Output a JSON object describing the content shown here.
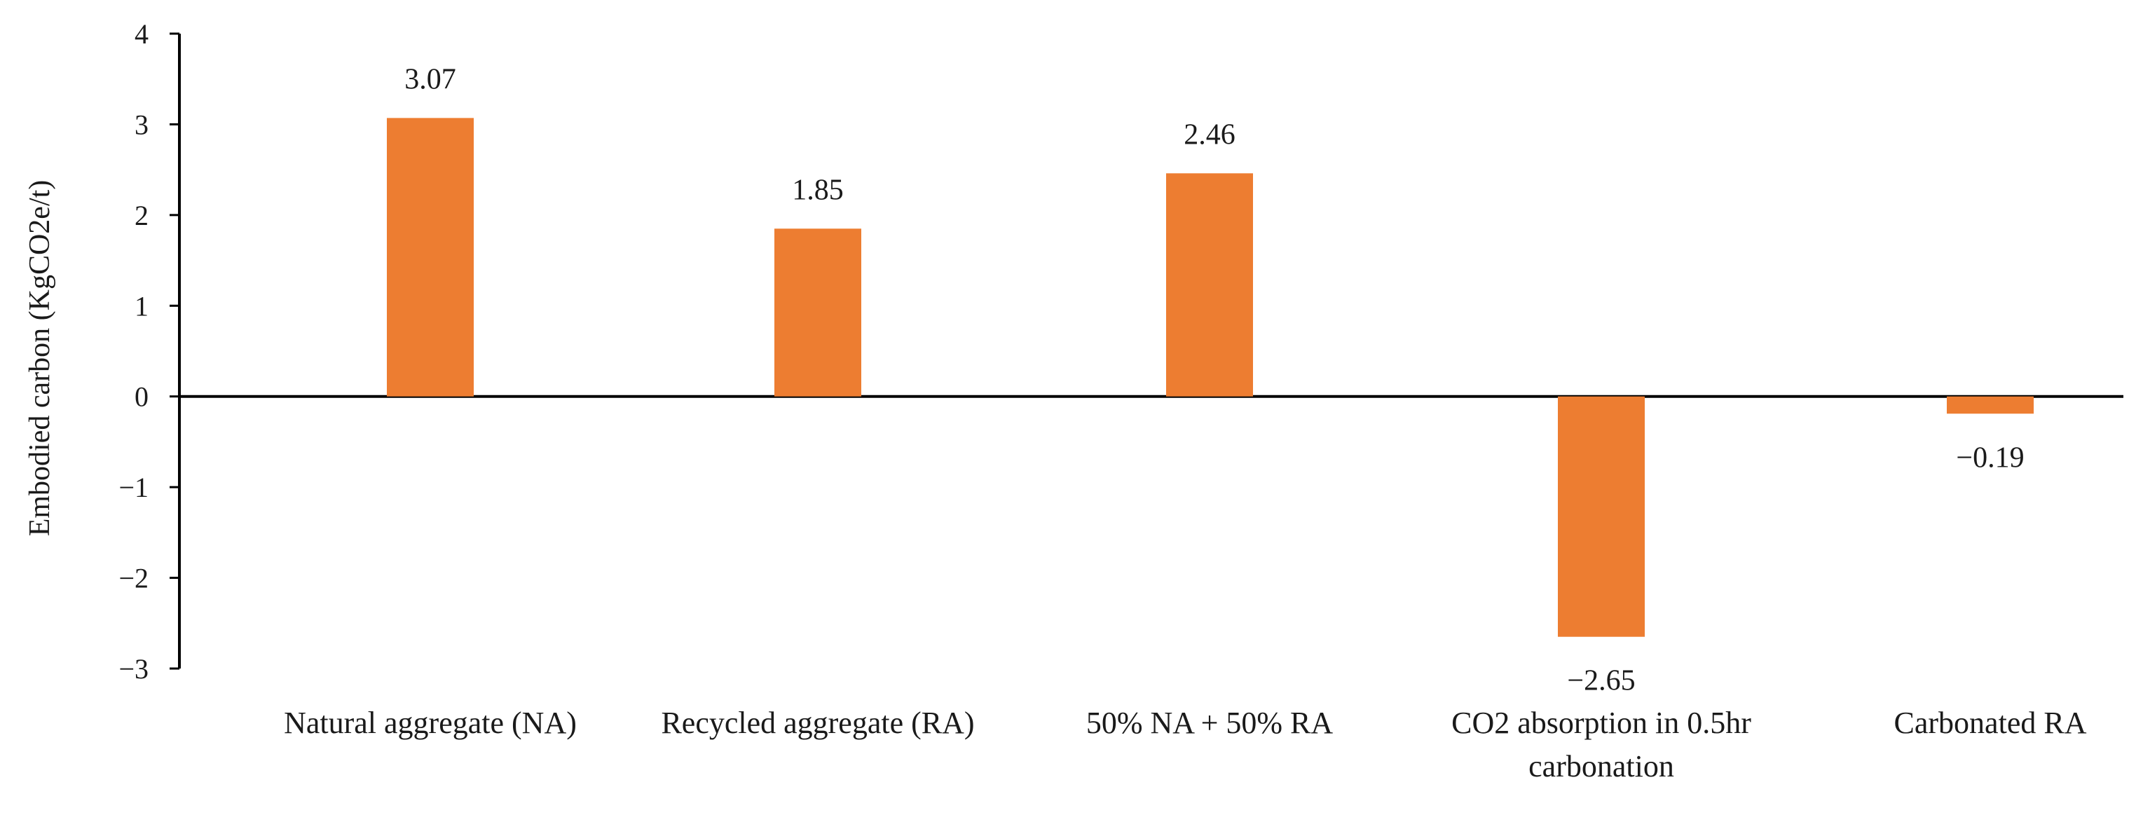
{
  "chart_data": {
    "type": "bar",
    "title": "",
    "xlabel": "",
    "ylabel": "Embodied carbon (KgCO2e/t)",
    "ylim": [
      -3,
      4
    ],
    "yticks": [
      "4",
      "3",
      "2",
      "1",
      "0",
      "−1",
      "−2",
      "−3"
    ],
    "grid": false,
    "legend": "none",
    "bar_color": "#ED7D31",
    "categories": [
      [
        "Natural aggregate (NA)"
      ],
      [
        "Recycled aggregate (RA)"
      ],
      [
        "50% NA + 50% RA"
      ],
      [
        "CO2 absorption in 0.5hr",
        "carbonation"
      ],
      [
        "Carbonated RA"
      ]
    ],
    "values": [
      3.07,
      1.85,
      2.46,
      -2.65,
      -0.19
    ],
    "data_labels": [
      "3.07",
      "1.85",
      "2.46",
      "−2.65",
      "−0.19"
    ]
  }
}
